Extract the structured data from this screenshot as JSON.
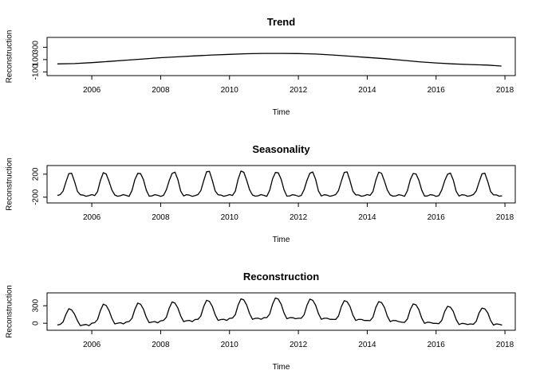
{
  "chart_data": [
    {
      "type": "line",
      "title": "Trend",
      "xlabel": "Time",
      "ylabel": "Reconstruction",
      "xlim": [
        2004.7,
        2018.3
      ],
      "ylim": [
        -160,
        460
      ],
      "xticks": [
        2006,
        2008,
        2010,
        2012,
        2014,
        2016,
        2018
      ],
      "yticks": [
        -100,
        100,
        300
      ],
      "legend": "none",
      "series": [
        {
          "x": [
            2005.0,
            2005.5,
            2006.0,
            2006.5,
            2007.0,
            2007.5,
            2008.0,
            2008.5,
            2009.0,
            2009.5,
            2010.0,
            2010.5,
            2011.0,
            2011.5,
            2012.0,
            2012.5,
            2013.0,
            2013.5,
            2014.0,
            2014.5,
            2015.0,
            2015.5,
            2016.0,
            2016.5,
            2017.0,
            2017.5,
            2017.9
          ],
          "values": [
            30,
            35,
            50,
            70,
            90,
            110,
            130,
            145,
            160,
            175,
            185,
            195,
            200,
            200,
            198,
            190,
            175,
            155,
            135,
            115,
            90,
            65,
            45,
            30,
            20,
            10,
            -5
          ]
        }
      ]
    },
    {
      "type": "line",
      "title": "Seasonality",
      "xlabel": "Time",
      "ylabel": "Reconstruction",
      "xlim": [
        2004.7,
        2018.3
      ],
      "ylim": [
        -300,
        350
      ],
      "xticks": [
        2006,
        2008,
        2010,
        2012,
        2014,
        2016,
        2018
      ],
      "yticks": [
        -200,
        200
      ],
      "legend": "none",
      "series": [
        {
          "peak_amplitude": [
            220,
            230,
            240,
            245,
            255,
            260,
            255,
            250,
            245,
            240,
            235,
            230,
            220
          ],
          "trough_level": -170,
          "start": 2005.0,
          "end": 2017.9
        }
      ]
    },
    {
      "type": "line",
      "title": "Reconstruction",
      "xlabel": "Time",
      "ylabel": "Reconstruction",
      "xlim": [
        2004.7,
        2018.3
      ],
      "ylim": [
        -120,
        520
      ],
      "xticks": [
        2006,
        2008,
        2010,
        2012,
        2014,
        2016,
        2018
      ],
      "yticks": [
        0,
        300
      ],
      "legend": "none",
      "series": [
        {
          "peaks": [
            250,
            330,
            350,
            370,
            400,
            425,
            440,
            420,
            395,
            380,
            340,
            300,
            270
          ],
          "troughs": [
            -30,
            0,
            20,
            40,
            60,
            80,
            90,
            80,
            60,
            40,
            10,
            -10,
            -20
          ],
          "start": 2005.0,
          "end": 2017.9
        }
      ]
    }
  ]
}
